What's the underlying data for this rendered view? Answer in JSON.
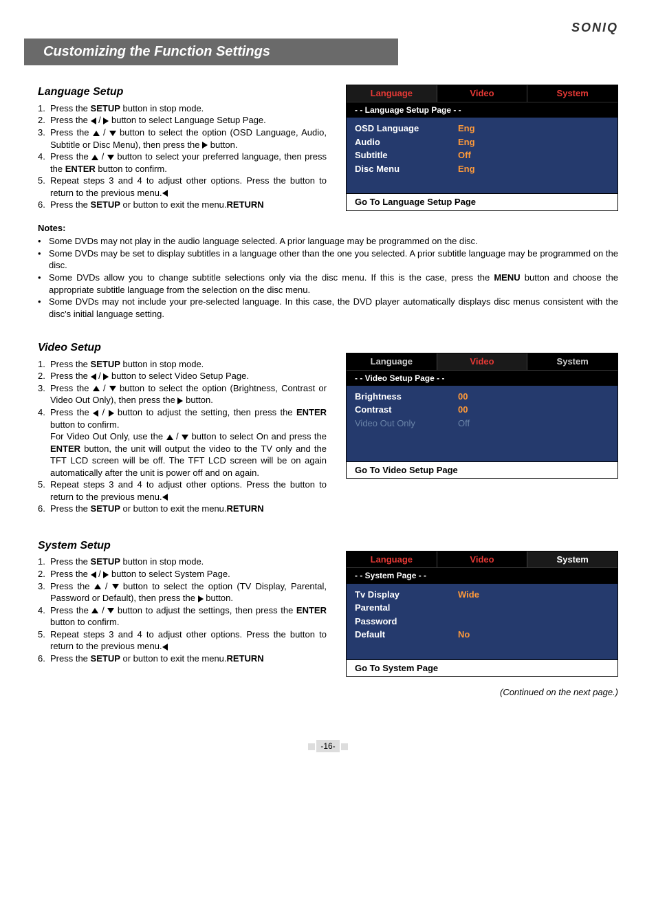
{
  "brand": "SONIQ",
  "title": "Customizing the Function Settings",
  "footer_page": "-16-",
  "continued": "(Continued on the next page.)",
  "language_setup": {
    "heading": "Language Setup",
    "steps": [
      {
        "pre": "Press the ",
        "bold": "SETUP",
        "post": " button in stop mode."
      },
      {
        "pre": "Press the ",
        "arrows": "lr",
        "post": " button to select Language Setup Page."
      },
      {
        "pre": "Press the ",
        "arrows": "ud",
        "post": " button to select the option (OSD Language, Audio, Subtitle or Disc Menu), then press the ",
        "end_arrow": "r",
        "end_post": " button."
      },
      {
        "pre": "Press the ",
        "arrows": "ud",
        "post": " button to select your preferred language, then press  the ",
        "bold2": "ENTER",
        "post2": " button to confirm."
      },
      {
        "pre": "Repeat steps 3 and 4 to adjust other options. Press the ",
        "end_arrow": "l",
        "post": " button to return to the previous menu."
      },
      {
        "pre": "Press the ",
        "bold": "SETUP",
        "mid": " or ",
        "bold2": "RETURN",
        "post": " button to exit the menu."
      }
    ],
    "menu": {
      "tabs": [
        {
          "t": "Language",
          "sel": true
        },
        {
          "t": "Video",
          "r": true
        },
        {
          "t": "System",
          "r": true
        }
      ],
      "sub": "- - Language Setup Page - -",
      "rows": [
        {
          "k": "OSD Language",
          "v": "Eng",
          "hi": true
        },
        {
          "k": "Audio",
          "v": "Eng",
          "hi": true
        },
        {
          "k": "Subtitle",
          "v": "Off",
          "hi": true
        },
        {
          "k": "Disc Menu",
          "v": "Eng",
          "hi": true
        }
      ],
      "foot": "Go To Language Setup Page"
    }
  },
  "notes_heading": "Notes:",
  "notes": [
    "Some DVDs may not play in the audio language selected. A prior language may be programmed on the disc.",
    "Some DVDs may be set to display subtitles in a language other than the one you selected. A prior subtitle language may be programmed on the disc.",
    {
      "t": "Some DVDs allow you to change subtitle selections only via the disc menu. If this is the case,  press the ",
      "b": "MENU",
      "t2": " button and choose the appropriate subtitle language from the selection on the disc menu."
    },
    "Some DVDs may not include your pre-selected language. In this case, the DVD player automatically displays disc menus consistent with the disc's initial language setting."
  ],
  "video_setup": {
    "heading": "Video Setup",
    "steps": [
      {
        "pre": "Press the ",
        "bold": "SETUP",
        "post": " button in stop mode."
      },
      {
        "pre": "Press the ",
        "arrows": "lr",
        "post": " button to select Video Setup Page."
      },
      {
        "pre": "Press the ",
        "arrows": "ud",
        "post": " button to select the option (Brightness, Contrast or Video Out Only), then press the ",
        "end_arrow": "r",
        "end_post": " button."
      },
      {
        "pre": "Press the ",
        "arrows": "lr",
        "post": " button to adjust the setting, then press the ",
        "bold2": "ENTER",
        "post2": " button to confirm.",
        "extra": "For Video Out Only, use the ",
        "extra_arrows": "ud",
        "extra2": " button to select On and press the ",
        "extra_bold": "ENTER",
        "extra3": " button, the unit will output the video to the TV only and the TFT LCD screen will be off. The TFT LCD screen will be on again automatically after the unit is power off and on again."
      },
      {
        "pre": "Repeat steps 3 and 4 to adjust other options. Press the ",
        "end_arrow": "l",
        "post": " button to return to the previous menu."
      },
      {
        "pre": "Press the ",
        "bold": "SETUP",
        "mid": " or ",
        "bold2": "RETURN",
        "post": " button to exit the menu."
      }
    ],
    "menu": {
      "tabs": [
        {
          "t": "Language"
        },
        {
          "t": "Video",
          "sel": true
        },
        {
          "t": "System"
        }
      ],
      "sub": "- - Video Setup Page - -",
      "rows": [
        {
          "k": "Brightness",
          "v": "00",
          "hi": true
        },
        {
          "k": "Contrast",
          "v": "00",
          "hi": true
        },
        {
          "k": "Video Out Only",
          "v": "Off",
          "dim": true
        }
      ],
      "foot": "Go To Video Setup Page"
    }
  },
  "system_setup": {
    "heading": "System Setup",
    "steps": [
      {
        "pre": "Press the ",
        "bold": "SETUP",
        "post": " button in stop mode."
      },
      {
        "pre": "Press the ",
        "arrows": "lr",
        "post": " button to select System Page."
      },
      {
        "pre": "Press the ",
        "arrows": "ud",
        "post": " button to select the option (TV Display, Parental, Password or Default), then press the ",
        "end_arrow": "r",
        "end_post": " button."
      },
      {
        "pre": "Press the ",
        "arrows": "ud",
        "post": " button to adjust the settings, then press  the ",
        "bold2": "ENTER",
        "post2": " button to confirm."
      },
      {
        "pre": "Repeat steps 3 and 4 to adjust other options. Press the ",
        "end_arrow": "l",
        "post": " button to return to the previous menu."
      },
      {
        "pre": "Press the ",
        "bold": "SETUP",
        "mid": " or ",
        "bold2": "RETURN",
        "post": " button to exit the menu."
      }
    ],
    "menu": {
      "tabs": [
        {
          "t": "Language",
          "r": true
        },
        {
          "t": "Video",
          "r": true
        },
        {
          "t": "System",
          "sel": true,
          "white": true
        }
      ],
      "sub": "- - System Page - -",
      "rows": [
        {
          "k": "Tv Display",
          "v": "Wide",
          "hi": true
        },
        {
          "k": "Parental",
          "v": "",
          "hi": true
        },
        {
          "k": "Password",
          "v": "",
          "hi": true
        },
        {
          "k": "Default",
          "v": "No",
          "hi": true
        }
      ],
      "foot": "Go To System Page"
    }
  }
}
